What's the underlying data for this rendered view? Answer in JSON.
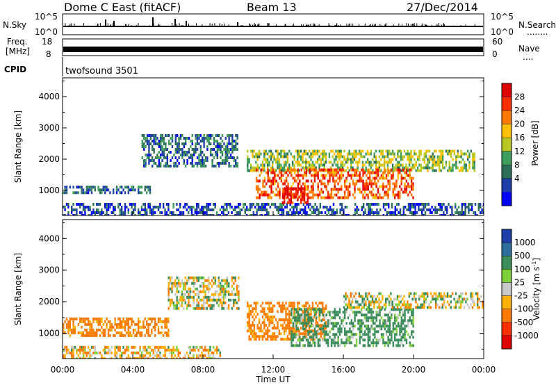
{
  "header": {
    "station": "Dome C East (fitACF)",
    "beam": "Beam 13",
    "date": "27/Dec/2014"
  },
  "nsky_strip": {
    "label": "N.Sky",
    "right_label": "N.Search",
    "right_dots": "........",
    "tick_top": "10^5",
    "tick_bottom": "10^0",
    "right_tick_top": "10^5",
    "right_tick_bottom": "10^0"
  },
  "freq_strip": {
    "label_line1": "Freq.",
    "label_line2": "[MHz]",
    "right_label": "Nave",
    "right_dots": "....",
    "left_ticks": [
      "18",
      "8"
    ],
    "right_ticks": [
      "60",
      "0"
    ]
  },
  "cpid_strip": {
    "label": "CPID",
    "value": "twofsound 3501"
  },
  "time_axis": {
    "label": "Time UT",
    "ticks": [
      "00:00",
      "04:00",
      "08:00",
      "12:00",
      "16:00",
      "20:00",
      "00:00"
    ]
  },
  "power_colorbar": {
    "title": "Power [dB]",
    "labels": [
      "28",
      "24",
      "20",
      "16",
      "12",
      "8",
      "4"
    ],
    "colors": [
      "#e00000",
      "#ff3000",
      "#ff7a00",
      "#ffc000",
      "#b8c820",
      "#3f9e5e",
      "#2a6f56",
      "#1f3fa8",
      "#0000ff"
    ]
  },
  "velocity_colorbar": {
    "title": "Velocity [m s^-1]",
    "title_main": "Velocity [m s",
    "title_sup": "-1",
    "title_end": "]",
    "labels": [
      "1000",
      "500",
      "100",
      "25",
      "-25",
      "-100",
      "-500",
      "-1000"
    ],
    "colors": [
      "#1f3fa8",
      "#2e6e9c",
      "#3a8c5a",
      "#7fcf3a",
      "#c8c8c8",
      "#ffb000",
      "#ff7a00",
      "#ff3000",
      "#e00000"
    ]
  },
  "chart_data": [
    {
      "type": "heatmap",
      "title": "Power [dB]",
      "xlabel": "Time UT",
      "ylabel": "Slant Range [km]",
      "xlim": [
        "00:00",
        "24:00"
      ],
      "ylim": [
        200,
        4600
      ],
      "yticks": [
        1000,
        2000,
        3000,
        4000
      ],
      "colorbar_ticks": [
        4,
        8,
        12,
        16,
        20,
        24,
        28
      ],
      "description_bands": [
        {
          "time_start": 0.0,
          "time_end": 24.0,
          "range_start": 200,
          "range_end": 600,
          "power": 6
        },
        {
          "time_start": 0.0,
          "time_end": 5.0,
          "range_start": 900,
          "range_end": 1150,
          "power": 8
        },
        {
          "time_start": 4.5,
          "time_end": 10.0,
          "range_start": 1800,
          "range_end": 2800,
          "power": 8
        },
        {
          "time_start": 10.5,
          "time_end": 23.5,
          "range_start": 1600,
          "range_end": 2300,
          "power": 14
        },
        {
          "time_start": 11.0,
          "time_end": 20.0,
          "range_start": 800,
          "range_end": 1700,
          "power": 24
        },
        {
          "time_start": 12.5,
          "time_end": 14.0,
          "range_start": 600,
          "range_end": 1100,
          "power": 28
        }
      ]
    },
    {
      "type": "heatmap",
      "title": "Velocity [m s-1]",
      "xlabel": "Time UT",
      "ylabel": "Slant Range [km]",
      "xlim": [
        "00:00",
        "24:00"
      ],
      "ylim": [
        200,
        4600
      ],
      "yticks": [
        1000,
        2000,
        3000,
        4000
      ],
      "colorbar_ticks": [
        -1000,
        -500,
        -100,
        -25,
        25,
        100,
        500,
        1000
      ],
      "description_bands": [
        {
          "time_start": 0.0,
          "time_end": 9.0,
          "range_start": 200,
          "range_end": 600,
          "velocity": -60
        },
        {
          "time_start": 0.0,
          "time_end": 6.0,
          "range_start": 900,
          "range_end": 1500,
          "velocity": -200
        },
        {
          "time_start": 6.0,
          "time_end": 10.0,
          "range_start": 1800,
          "range_end": 2800,
          "velocity": 0
        },
        {
          "time_start": 10.5,
          "time_end": 15.0,
          "range_start": 800,
          "range_end": 2000,
          "velocity": -200
        },
        {
          "time_start": 13.0,
          "time_end": 20.0,
          "range_start": 600,
          "range_end": 1800,
          "velocity": 150
        },
        {
          "time_start": 16.0,
          "time_end": 24.0,
          "range_start": 1800,
          "range_end": 2300,
          "velocity": 0
        }
      ]
    }
  ]
}
